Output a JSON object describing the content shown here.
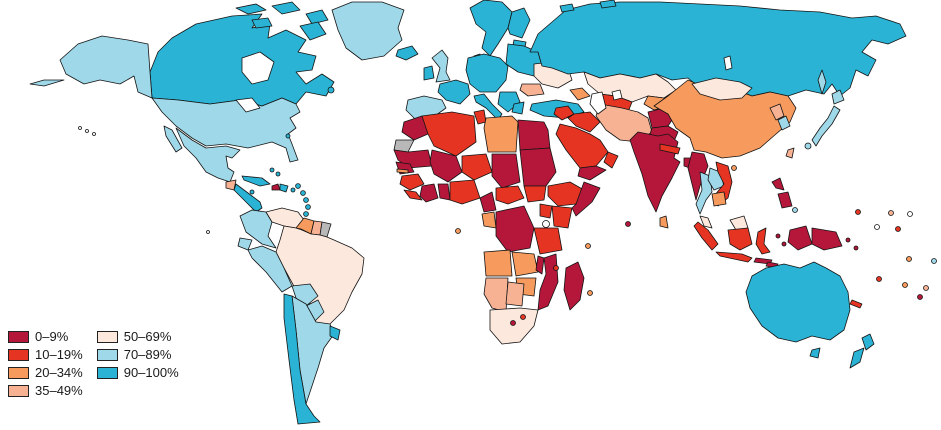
{
  "legend": {
    "categories": [
      "0–9%",
      "10–19%",
      "20–34%",
      "35–49%",
      "50–69%",
      "70–89%",
      "90–100%"
    ],
    "colors": [
      "#b4173a",
      "#e63423",
      "#f79a5d",
      "#f7b294",
      "#fce8dc",
      "#9ed8e9",
      "#2ab3d4"
    ],
    "swatch_border_color": "#222222"
  },
  "map": {
    "no_data_color": "#b8b8b8",
    "open_color": "#ffffff",
    "ocean_color": "#ffffff",
    "border_color": "#141414",
    "regions": {
      "alaska": 5,
      "canada": 6,
      "canada-arctic": 6,
      "greenland": 5,
      "iceland": 6,
      "usa": 5,
      "mexico": 5,
      "guatemala": 3,
      "central-america": 6,
      "cuba": 6,
      "haiti": 0,
      "dominican-republic": 6,
      "jamaica": 6,
      "bahamas": 6,
      "bermuda": 6,
      "puerto-rico": 6,
      "lesser-antilles": 6,
      "colombia": 5,
      "venezuela": 4,
      "guyana": 2,
      "suriname": 3,
      "french-guiana": "nd",
      "ecuador": 5,
      "peru": 5,
      "brazil": 4,
      "bolivia": 5,
      "paraguay": 5,
      "chile": 6,
      "argentina": 5,
      "uruguay": 6,
      "scandinavia": 6,
      "finland": 6,
      "baltics": 6,
      "denmark": 6,
      "uk": 5,
      "ireland": 6,
      "france": 6,
      "iberia": 5,
      "central-europe": 6,
      "east-europe": 6,
      "ukraine": 4,
      "romania": 3,
      "balkans": 6,
      "italy": 6,
      "greece": 6,
      "turkey": 6,
      "russia": 6,
      "russia-arctic": 6,
      "sakhalin": 5,
      "kazakhstan": 4,
      "uzbekistan-turkmenistan": 1,
      "kyrgyzstan-tajikistan": 2,
      "caucasus": 2,
      "levant": 1,
      "iraq": 1,
      "iran": 3,
      "afghanistan": 0,
      "pakistan": 0,
      "saudi-arabia": 1,
      "yemen": 0,
      "oman": 1,
      "morocco": 0,
      "western-sahara": "nd",
      "algeria": 1,
      "tunisia": 1,
      "libya": 2,
      "egypt": 0,
      "mauritania": 0,
      "mali": 0,
      "niger": 1,
      "chad": 0,
      "sudan": 0,
      "senegal": 0,
      "gambia": 2,
      "guinea": 1,
      "sierra-leone": 1,
      "ivory-coast": 0,
      "ghana": 0,
      "nigeria": 1,
      "cameroon": 0,
      "central-african-republic": 1,
      "south-sudan": 1,
      "ethiopia": 1,
      "somalia": 0,
      "kenya": 1,
      "uganda": 1,
      "gabon-congo": 2,
      "dr-congo": 0,
      "tanzania": 1,
      "angola": 2,
      "zambia": 2,
      "malawi": 0,
      "mozambique": 0,
      "zimbabwe": 2,
      "namibia": 3,
      "botswana": 3,
      "south-africa": 4,
      "lesotho": 1,
      "eswatini": 0,
      "madagascar": 0,
      "sao-tome": 2,
      "maldives": 0,
      "comoros": 1,
      "seychelles": 2,
      "mauritius": 2,
      "india": 0,
      "sri-lanka": 2,
      "nepal": 1,
      "bangladesh": 0,
      "myanmar": 0,
      "thailand": 5,
      "laos": 5,
      "vietnam": 1,
      "cambodia": 2,
      "hainan": 2,
      "malaysia": 4,
      "malaysia-borneo": 4,
      "china": 2,
      "mongolia": 4,
      "north-korea": 3,
      "south-korea": 5,
      "japan": 5,
      "taiwan": 3,
      "philippines": 0,
      "sumatra": 1,
      "java": 1,
      "borneo-indonesia": 1,
      "sulawesi": 1,
      "lesser-sunda": 0,
      "timor": 0,
      "maluku": 0,
      "papua-indonesia": 0,
      "papua-new-guinea": 0,
      "australia": 6,
      "tasmania": 6,
      "new-zealand": 6,
      "new-caledonia": 1,
      "pacific-island-1": 5,
      "pacific-island-2": 1,
      "pacific-island-3": 3,
      "pacific-island-4": "open",
      "pacific-island-5": 1,
      "pacific-island-6": "open",
      "pacific-island-7": 2,
      "pacific-island-8": 5,
      "pacific-island-9": 1,
      "pacific-island-10": 2,
      "pacific-island-11": 3,
      "pacific-island-12": 0,
      "hawaii": "open",
      "galapagos": "open"
    }
  }
}
